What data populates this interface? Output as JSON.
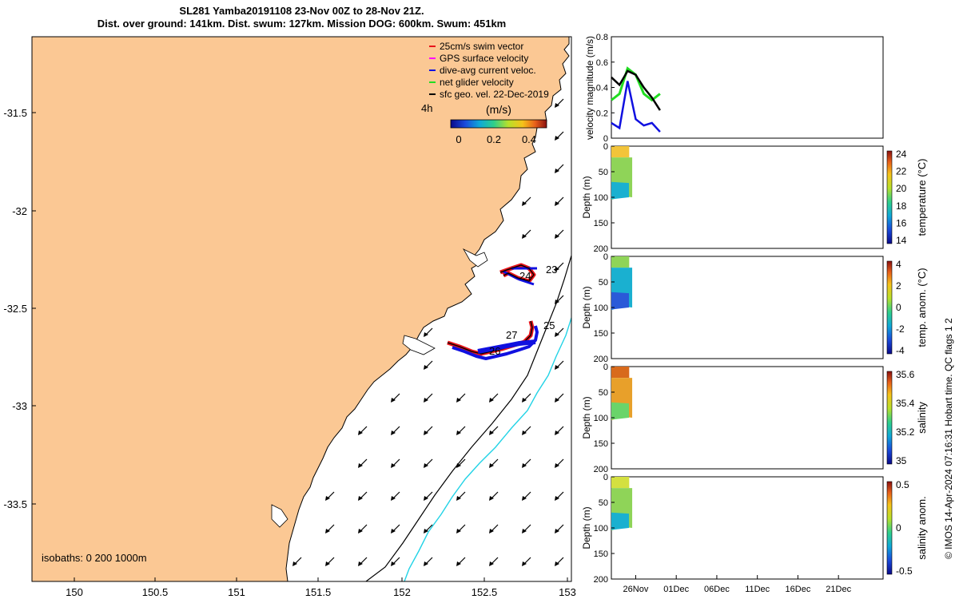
{
  "title": {
    "line1": "SL281 Yamba20191108 23-Nov 00Z to 28-Nov 21Z.",
    "line2": "Dist. over ground: 141km. Dist. swum: 127km. Mission DOG: 600km. Swum: 451km"
  },
  "map": {
    "x_ticks": [
      "150",
      "150.5",
      "151",
      "151.5",
      "152",
      "152.5",
      "153"
    ],
    "y_ticks": [
      "-31.5",
      "-32",
      "-32.5",
      "-33",
      "-33.5"
    ],
    "isobath_label": "isobaths: 0   200  1000m",
    "legend": [
      {
        "label": "25cm/s swim vector",
        "color": "#e8141a"
      },
      {
        "label": "GPS surface velocity",
        "color": "#ff00ff"
      },
      {
        "label": "dive-avg current veloc.",
        "color": "#1010e0"
      },
      {
        "label": "net glider velocity",
        "color": "#22dd22"
      },
      {
        "label": "sfc geo. vel. 22-Dec-2019",
        "color": "#000000"
      }
    ],
    "legend_side_label": "4h",
    "colorbar_title": "(m/s)",
    "colorbar_ticks": [
      "0",
      "0.2",
      "0.4"
    ],
    "day_labels": [
      "23",
      "24",
      "25",
      "27",
      "26"
    ],
    "colors": {
      "land": "#fbc894",
      "isobath_200": "#000000",
      "isobath_1000": "#22d3e6"
    }
  },
  "panels": {
    "x_ticks": [
      "26Nov",
      "01Dec",
      "06Dec",
      "11Dec",
      "16Dec",
      "21Dec"
    ],
    "velocity": {
      "ylabel": "velocity magnitude (m/s)",
      "y_ticks": [
        "0",
        "0.2",
        "0.4",
        "0.6",
        "0.8"
      ]
    },
    "depth_ticks": [
      "0",
      "50",
      "100",
      "150",
      "200"
    ],
    "depth_label": "Depth (m)",
    "temperature": {
      "cbar_label": "temperature (°C)",
      "cbar_ticks": [
        "24",
        "22",
        "20",
        "18",
        "16",
        "14"
      ]
    },
    "temp_anom": {
      "cbar_label": "temp. anom. (°C)",
      "cbar_ticks": [
        "4",
        "2",
        "0",
        "-2",
        "-4"
      ]
    },
    "salinity": {
      "cbar_label": "salinity",
      "cbar_ticks": [
        "35.6",
        "35.4",
        "35.2",
        "35"
      ]
    },
    "sal_anom": {
      "cbar_label": "salinity anom.",
      "cbar_ticks": [
        "0.5",
        "0",
        "-0.5"
      ]
    }
  },
  "credit": "© IMOS 14-Apr-2024 07:16:31 Hobart time. QC flags 1  2",
  "chart_data": [
    {
      "type": "scatter",
      "title": "SL281 Yamba20191108 23-Nov 00Z to 28-Nov 21Z.",
      "xlabel": "",
      "ylabel": "",
      "xlim": [
        149.73,
        153.03
      ],
      "ylim": [
        -33.88,
        -31.17
      ],
      "series": [
        {
          "name": "dive-avg current veloc.",
          "x": [
            152.62,
            152.73,
            152.78,
            152.62,
            152.45,
            152.3
          ],
          "y": [
            -32.33,
            -32.38,
            -32.72,
            -32.74,
            -32.71,
            -32.68
          ]
        }
      ]
    },
    {
      "type": "line",
      "ylabel": "velocity magnitude (m/s)",
      "ylim": [
        0,
        0.8
      ],
      "x": [
        "23-Nov",
        "24-Nov",
        "25-Nov",
        "26-Nov",
        "27-Nov",
        "28-Nov",
        "29-Nov"
      ],
      "series": [
        {
          "name": "net glider velocity",
          "values": [
            0.3,
            0.35,
            0.55,
            0.5,
            0.35,
            0.3,
            0.35
          ]
        },
        {
          "name": "sfc geo. vel.",
          "values": [
            0.48,
            0.42,
            0.53,
            0.5,
            0.4,
            0.32,
            0.22
          ]
        },
        {
          "name": "dive-avg current veloc.",
          "values": [
            0.12,
            0.08,
            0.45,
            0.15,
            0.1,
            0.12,
            0.05
          ]
        }
      ]
    }
  ]
}
